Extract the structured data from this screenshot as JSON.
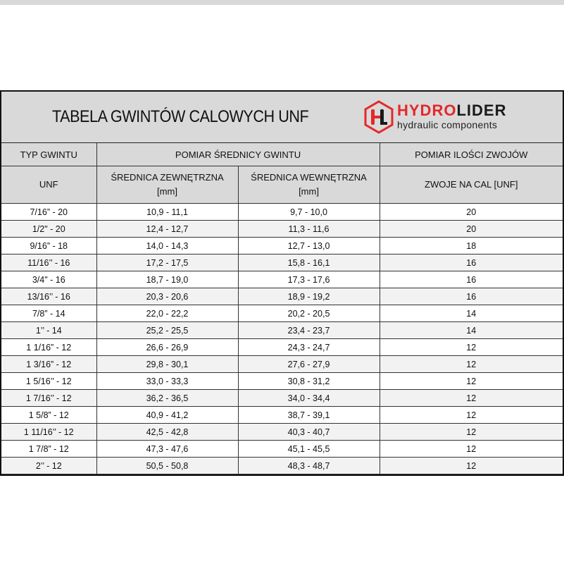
{
  "title": "TABELA GWINTÓW CALOWYCH UNF",
  "logo": {
    "brand_red": "HYDRO",
    "brand_dark": "LIDER",
    "tagline": "hydraulic components",
    "brand_color": "#e4282a"
  },
  "headers": {
    "type": "TYP GWINTU",
    "diameter_group": "POMIAR ŚREDNICY GWINTU",
    "threads_group": "POMIAR ILOŚCI ZWOJÓW",
    "unf": "UNF",
    "outer": "ŚREDNICA ZEWNĘTRZNA",
    "outer_unit": "[mm]",
    "inner": "ŚREDNICA WEWNĘTRZNA",
    "inner_unit": "[mm]",
    "tpi": "ZWOJE NA CAL [UNF]"
  },
  "rows": [
    [
      "7/16” - 20",
      "10,9 - 11,1",
      "9,7 - 10,0",
      "20"
    ],
    [
      "1/2\" - 20",
      "12,4 - 12,7",
      "11,3 - 11,6",
      "20"
    ],
    [
      "9/16” - 18",
      "14,0 - 14,3",
      "12,7 - 13,0",
      "18"
    ],
    [
      "11/16’’ - 16",
      "17,2 - 17,5",
      "15,8 - 16,1",
      "16"
    ],
    [
      "3/4\" - 16",
      "18,7 - 19,0",
      "17,3 - 17,6",
      "16"
    ],
    [
      "13/16’’ - 16",
      "20,3 - 20,6",
      "18,9 - 19,2",
      "16"
    ],
    [
      "7/8” - 14",
      "22,0 - 22,2",
      "20,2 - 20,5",
      "14"
    ],
    [
      "1’’ - 14",
      "25,2 - 25,5",
      "23,4 - 23,7",
      "14"
    ],
    [
      "1 1/16” - 12",
      "26,6 - 26,9",
      "24,3 - 24,7",
      "12"
    ],
    [
      "1 3/16” - 12",
      "29,8 - 30,1",
      "27,6 - 27,9",
      "12"
    ],
    [
      "1 5/16’’ - 12",
      "33,0 - 33,3",
      "30,8 - 31,2",
      "12"
    ],
    [
      "1 7/16’’ - 12",
      "36,2 - 36,5",
      "34,0 - 34,4",
      "12"
    ],
    [
      "1 5/8” - 12",
      "40,9 - 41,2",
      "38,7 - 39,1",
      "12"
    ],
    [
      "1 11/16’’ - 12",
      "42,5 - 42,8",
      "40,3 - 40,7",
      "12"
    ],
    [
      "1 7/8” - 12",
      "47,3 - 47,6",
      "45,1 - 45,5",
      "12"
    ],
    [
      "2’’ - 12",
      "50,5 - 50,8",
      "48,3 - 48,7",
      "12"
    ]
  ]
}
